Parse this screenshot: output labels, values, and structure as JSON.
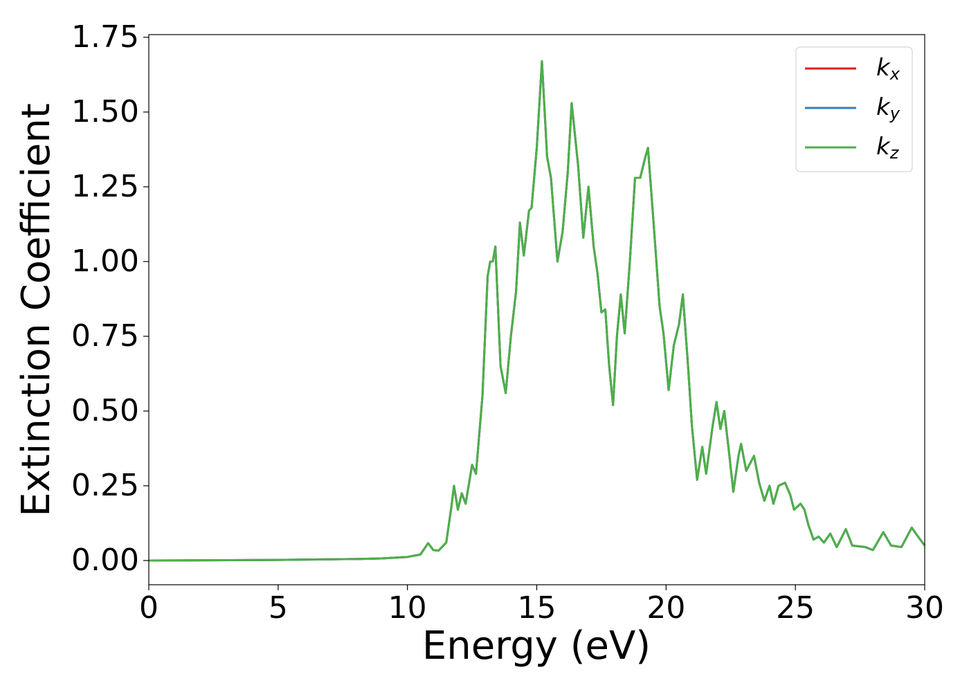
{
  "chart_data": {
    "type": "line",
    "xlabel": "Energy (eV)",
    "ylabel": "Extinction Coefficient",
    "xlim": [
      0,
      30
    ],
    "ylim": [
      -0.081,
      1.759
    ],
    "xticks": [
      0,
      5,
      10,
      15,
      20,
      25,
      30
    ],
    "yticks": [
      {
        "value": 0,
        "label": "0.00"
      },
      {
        "value": 0.25,
        "label": "0.25"
      },
      {
        "value": 0.5,
        "label": "0.50"
      },
      {
        "value": 0.75,
        "label": "0.75"
      },
      {
        "value": 1,
        "label": "1.00"
      },
      {
        "value": 1.25,
        "label": "1.25"
      },
      {
        "value": 1.5,
        "label": "1.50"
      },
      {
        "value": 1.75,
        "label": "1.75"
      }
    ],
    "legend": "upper right",
    "grid": false,
    "x": [
      0,
      5,
      8,
      9,
      10,
      10.5,
      10.8,
      11.0,
      11.2,
      11.5,
      11.7,
      11.8,
      11.95,
      12.1,
      12.25,
      12.5,
      12.65,
      12.9,
      13.1,
      13.2,
      13.3,
      13.4,
      13.6,
      13.8,
      14.0,
      14.2,
      14.35,
      14.5,
      14.7,
      14.8,
      15.0,
      15.2,
      15.4,
      15.55,
      15.8,
      16.0,
      16.2,
      16.35,
      16.6,
      16.8,
      17.0,
      17.2,
      17.35,
      17.5,
      17.65,
      17.8,
      17.95,
      18.1,
      18.25,
      18.4,
      18.6,
      18.8,
      19.0,
      19.2,
      19.3,
      19.5,
      19.75,
      19.9,
      20.1,
      20.3,
      20.5,
      20.65,
      20.85,
      21.0,
      21.2,
      21.4,
      21.55,
      21.8,
      21.95,
      22.1,
      22.25,
      22.45,
      22.6,
      22.8,
      22.9,
      23.1,
      23.4,
      23.6,
      23.8,
      24.0,
      24.15,
      24.35,
      24.6,
      24.8,
      24.95,
      25.2,
      25.35,
      25.5,
      25.7,
      25.9,
      26.1,
      26.35,
      26.6,
      26.95,
      27.2,
      27.7,
      28.0,
      28.4,
      28.7,
      29.1,
      29.5,
      29.7,
      30
    ],
    "series": [
      {
        "name": "kx",
        "color": "#e41a1c",
        "values": [
          0,
          0.002,
          0.005,
          0.007,
          0.012,
          0.02,
          0.058,
          0.035,
          0.033,
          0.06,
          0.18,
          0.25,
          0.17,
          0.225,
          0.19,
          0.32,
          0.29,
          0.55,
          0.95,
          1.0,
          1.0,
          1.05,
          0.65,
          0.56,
          0.75,
          0.9,
          1.13,
          1.02,
          1.17,
          1.18,
          1.38,
          1.67,
          1.35,
          1.28,
          1.0,
          1.1,
          1.3,
          1.53,
          1.32,
          1.08,
          1.25,
          1.05,
          0.96,
          0.83,
          0.84,
          0.65,
          0.52,
          0.75,
          0.89,
          0.76,
          1.0,
          1.28,
          1.28,
          1.35,
          1.38,
          1.15,
          0.85,
          0.76,
          0.57,
          0.72,
          0.79,
          0.89,
          0.65,
          0.45,
          0.27,
          0.38,
          0.29,
          0.45,
          0.53,
          0.44,
          0.5,
          0.35,
          0.23,
          0.35,
          0.39,
          0.3,
          0.35,
          0.26,
          0.2,
          0.25,
          0.19,
          0.25,
          0.26,
          0.22,
          0.17,
          0.19,
          0.17,
          0.12,
          0.07,
          0.08,
          0.06,
          0.09,
          0.045,
          0.105,
          0.05,
          0.045,
          0.035,
          0.095,
          0.05,
          0.045,
          0.11,
          0.085,
          0.05
        ]
      },
      {
        "name": "ky",
        "color": "#377eb8",
        "values": [
          0,
          0.002,
          0.005,
          0.007,
          0.012,
          0.02,
          0.058,
          0.035,
          0.033,
          0.06,
          0.18,
          0.25,
          0.17,
          0.225,
          0.19,
          0.32,
          0.29,
          0.55,
          0.95,
          1.0,
          1.0,
          1.05,
          0.65,
          0.56,
          0.75,
          0.9,
          1.13,
          1.02,
          1.17,
          1.18,
          1.38,
          1.67,
          1.35,
          1.28,
          1.0,
          1.1,
          1.3,
          1.53,
          1.32,
          1.08,
          1.25,
          1.05,
          0.96,
          0.83,
          0.84,
          0.65,
          0.52,
          0.75,
          0.89,
          0.76,
          1.0,
          1.28,
          1.28,
          1.35,
          1.38,
          1.15,
          0.85,
          0.76,
          0.57,
          0.72,
          0.79,
          0.89,
          0.65,
          0.45,
          0.27,
          0.38,
          0.29,
          0.45,
          0.53,
          0.44,
          0.5,
          0.35,
          0.23,
          0.35,
          0.39,
          0.3,
          0.35,
          0.26,
          0.2,
          0.25,
          0.19,
          0.25,
          0.26,
          0.22,
          0.17,
          0.19,
          0.17,
          0.12,
          0.07,
          0.08,
          0.06,
          0.09,
          0.045,
          0.105,
          0.05,
          0.045,
          0.035,
          0.095,
          0.05,
          0.045,
          0.11,
          0.085,
          0.05
        ]
      },
      {
        "name": "kz",
        "color": "#4daf4a",
        "values": [
          0,
          0.002,
          0.005,
          0.007,
          0.012,
          0.02,
          0.058,
          0.035,
          0.033,
          0.06,
          0.18,
          0.25,
          0.17,
          0.225,
          0.19,
          0.32,
          0.29,
          0.55,
          0.95,
          1.0,
          1.0,
          1.05,
          0.65,
          0.56,
          0.75,
          0.9,
          1.13,
          1.02,
          1.17,
          1.18,
          1.38,
          1.67,
          1.35,
          1.28,
          1.0,
          1.1,
          1.3,
          1.53,
          1.32,
          1.08,
          1.25,
          1.05,
          0.96,
          0.83,
          0.84,
          0.65,
          0.52,
          0.75,
          0.89,
          0.76,
          1.0,
          1.28,
          1.28,
          1.35,
          1.38,
          1.15,
          0.85,
          0.76,
          0.57,
          0.72,
          0.79,
          0.89,
          0.65,
          0.45,
          0.27,
          0.38,
          0.29,
          0.45,
          0.53,
          0.44,
          0.5,
          0.35,
          0.23,
          0.35,
          0.39,
          0.3,
          0.35,
          0.26,
          0.2,
          0.25,
          0.19,
          0.25,
          0.26,
          0.22,
          0.17,
          0.19,
          0.17,
          0.12,
          0.07,
          0.08,
          0.06,
          0.09,
          0.045,
          0.105,
          0.05,
          0.045,
          0.035,
          0.095,
          0.05,
          0.045,
          0.11,
          0.085,
          0.05
        ]
      }
    ]
  }
}
